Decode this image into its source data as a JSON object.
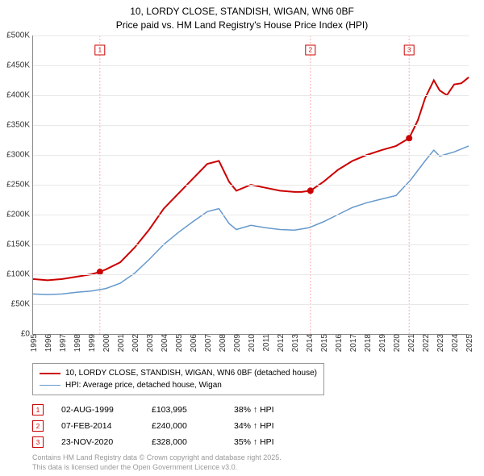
{
  "title_line1": "10, LORDY CLOSE, STANDISH, WIGAN, WN6 0BF",
  "title_line2": "Price paid vs. HM Land Registry's House Price Index (HPI)",
  "chart": {
    "type": "line",
    "x_start_year": 1995,
    "x_end_year": 2025,
    "xtick_step": 1,
    "ylim_min": 0,
    "ylim_max": 500000,
    "ytick_step": 50000,
    "ytick_prefix": "£",
    "ytick_suffix_k": "K",
    "background_color": "#ffffff",
    "grid_color": "#e8e8e8",
    "axis_color": "#888888",
    "series": [
      {
        "label": "10, LORDY CLOSE, STANDISH, WIGAN, WN6 0BF (detached house)",
        "color": "#cc0000",
        "width": 2,
        "data": [
          [
            1995.0,
            92000
          ],
          [
            1996.0,
            90000
          ],
          [
            1997.0,
            92000
          ],
          [
            1998.0,
            96000
          ],
          [
            1999.0,
            100000
          ],
          [
            1999.6,
            103995
          ],
          [
            2000.0,
            108000
          ],
          [
            2001.0,
            120000
          ],
          [
            2002.0,
            145000
          ],
          [
            2003.0,
            175000
          ],
          [
            2004.0,
            210000
          ],
          [
            2005.0,
            235000
          ],
          [
            2006.0,
            260000
          ],
          [
            2007.0,
            285000
          ],
          [
            2007.8,
            290000
          ],
          [
            2008.5,
            255000
          ],
          [
            2009.0,
            240000
          ],
          [
            2010.0,
            250000
          ],
          [
            2011.0,
            245000
          ],
          [
            2012.0,
            240000
          ],
          [
            2013.0,
            238000
          ],
          [
            2013.5,
            238000
          ],
          [
            2014.1,
            240000
          ],
          [
            2015.0,
            255000
          ],
          [
            2016.0,
            275000
          ],
          [
            2017.0,
            290000
          ],
          [
            2018.0,
            300000
          ],
          [
            2019.0,
            308000
          ],
          [
            2020.0,
            315000
          ],
          [
            2020.9,
            328000
          ],
          [
            2021.5,
            358000
          ],
          [
            2022.0,
            395000
          ],
          [
            2022.6,
            425000
          ],
          [
            2023.0,
            408000
          ],
          [
            2023.5,
            400000
          ],
          [
            2024.0,
            418000
          ],
          [
            2024.5,
            420000
          ],
          [
            2025.0,
            430000
          ]
        ]
      },
      {
        "label": "HPI: Average price, detached house, Wigan",
        "color": "#6699cc",
        "width": 1.5,
        "data": [
          [
            1995.0,
            67000
          ],
          [
            1996.0,
            66000
          ],
          [
            1997.0,
            67000
          ],
          [
            1998.0,
            70000
          ],
          [
            1999.0,
            72000
          ],
          [
            2000.0,
            76000
          ],
          [
            2001.0,
            85000
          ],
          [
            2002.0,
            102000
          ],
          [
            2003.0,
            125000
          ],
          [
            2004.0,
            150000
          ],
          [
            2005.0,
            170000
          ],
          [
            2006.0,
            188000
          ],
          [
            2007.0,
            205000
          ],
          [
            2007.8,
            210000
          ],
          [
            2008.5,
            185000
          ],
          [
            2009.0,
            175000
          ],
          [
            2010.0,
            182000
          ],
          [
            2011.0,
            178000
          ],
          [
            2012.0,
            175000
          ],
          [
            2013.0,
            174000
          ],
          [
            2014.0,
            178000
          ],
          [
            2015.0,
            188000
          ],
          [
            2016.0,
            200000
          ],
          [
            2017.0,
            212000
          ],
          [
            2018.0,
            220000
          ],
          [
            2019.0,
            226000
          ],
          [
            2020.0,
            232000
          ],
          [
            2021.0,
            258000
          ],
          [
            2022.0,
            290000
          ],
          [
            2022.6,
            308000
          ],
          [
            2023.0,
            298000
          ],
          [
            2024.0,
            305000
          ],
          [
            2025.0,
            315000
          ]
        ]
      }
    ],
    "sale_markers": [
      {
        "num": "1",
        "year": 1999.6,
        "price": 103995,
        "label_y_offset": 350
      },
      {
        "num": "2",
        "year": 2014.1,
        "price": 240000,
        "label_y_offset": 350
      },
      {
        "num": "3",
        "year": 2020.9,
        "price": 328000,
        "label_y_offset": 350
      }
    ],
    "marker_color": "#cc0000",
    "marker_line_color": "#ffaaaa"
  },
  "sales": [
    {
      "num": "1",
      "date": "02-AUG-1999",
      "price": "£103,995",
      "hpi": "38% ↑ HPI"
    },
    {
      "num": "2",
      "date": "07-FEB-2014",
      "price": "£240,000",
      "hpi": "34% ↑ HPI"
    },
    {
      "num": "3",
      "date": "23-NOV-2020",
      "price": "£328,000",
      "hpi": "35% ↑ HPI"
    }
  ],
  "footer_line1": "Contains HM Land Registry data © Crown copyright and database right 2025.",
  "footer_line2": "This data is licensed under the Open Government Licence v3.0."
}
